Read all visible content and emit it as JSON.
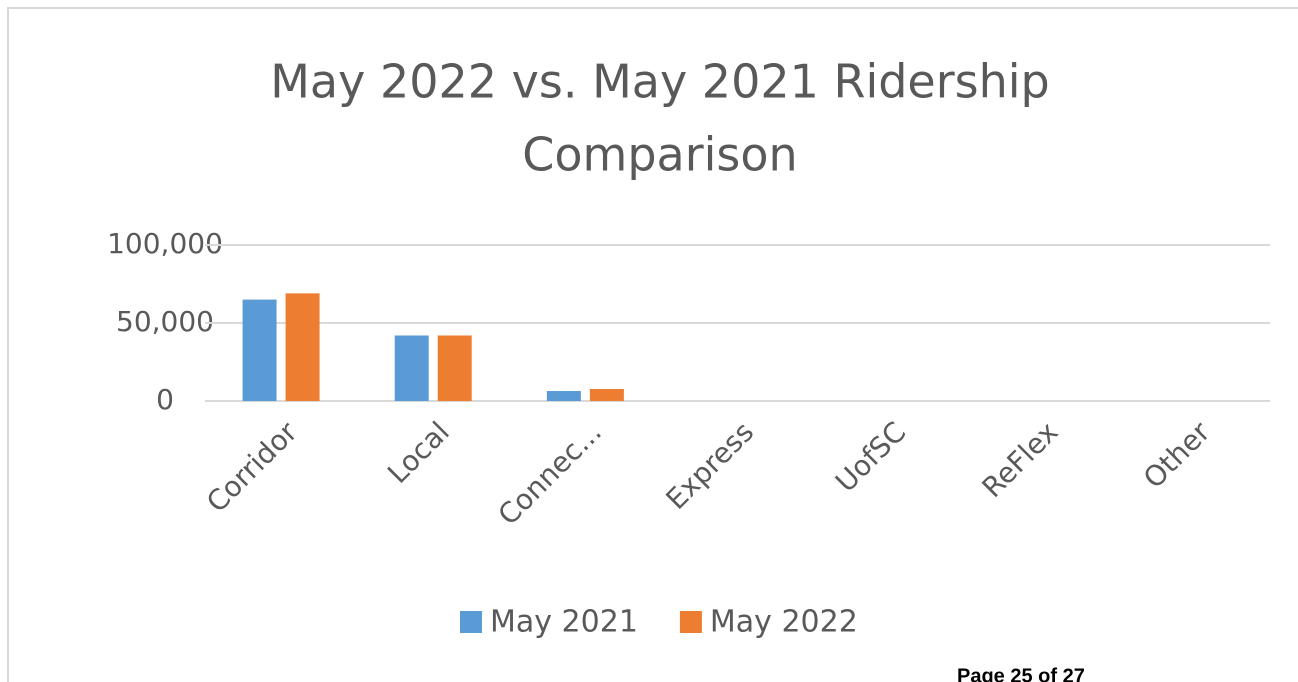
{
  "chart_data": {
    "type": "bar",
    "title": [
      "May 2022 vs. May 2021 Ridership",
      "Comparison"
    ],
    "categories": [
      "Corridor",
      "Local",
      "Connec...",
      "Express",
      "UofSC",
      "ReFlex",
      "Other"
    ],
    "series": [
      {
        "name": "May 2021",
        "color": "#5b9bd5",
        "values": [
          65000,
          42000,
          6400,
          0,
          0,
          0,
          0
        ]
      },
      {
        "name": "May 2022",
        "color": "#ed7d31",
        "values": [
          69000,
          42000,
          7700,
          0,
          0,
          0,
          0
        ]
      }
    ],
    "ylim": [
      0,
      100000
    ],
    "yticks": [
      0,
      {
        "value": 50000,
        "label": "50,000"
      },
      {
        "value": 100000,
        "label": "100,000"
      }
    ],
    "grid": true,
    "legend": "bottom"
  },
  "footer": "Page 25 of 27"
}
